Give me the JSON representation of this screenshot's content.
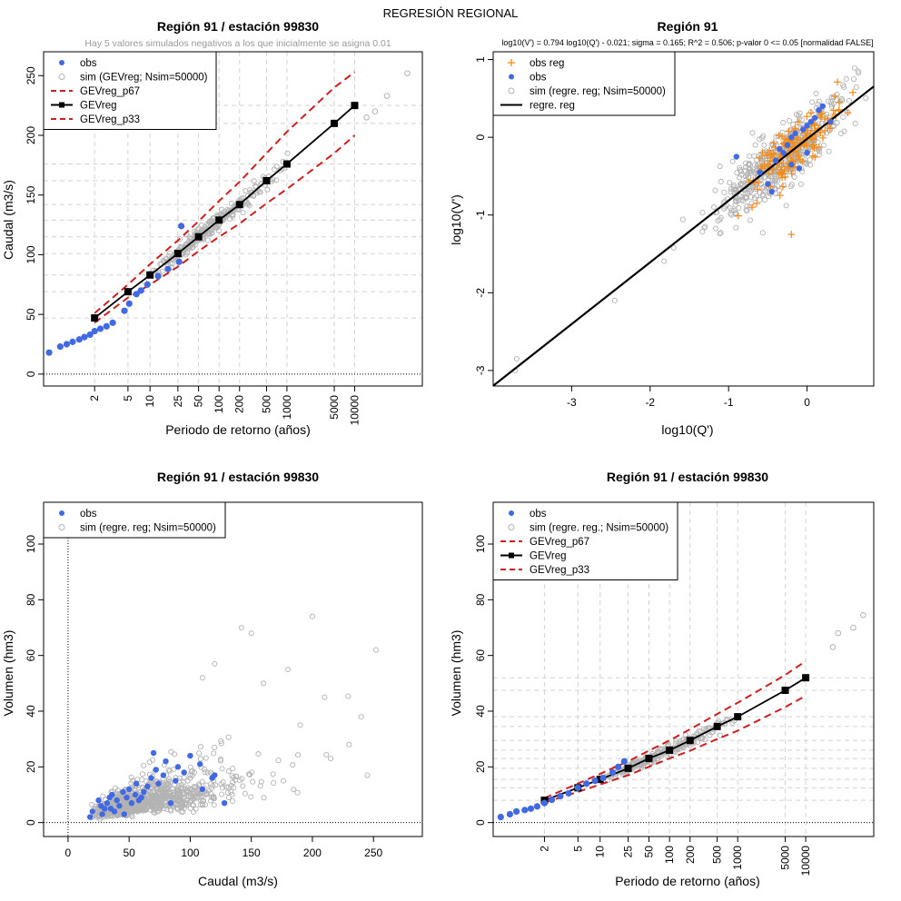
{
  "figure_title": "REGRESIÓN REGIONAL",
  "colors": {
    "obs": "#4169E1",
    "sim": "#B3B3B3",
    "band": "#CC1F1F",
    "fit": "#000000",
    "obs_reg": "#F28C1A",
    "grid": "#D3D3D3"
  },
  "chart_data": [
    {
      "type": "scatter",
      "title": "Región 91 / estación 99830",
      "subtitle": "Hay 5 valores simulados negativos a los que inicialmente se asigna 0.01",
      "xlabel": "Periodo de retorno (años)",
      "ylabel": "Caudal (m3/s)",
      "x_scale": "gumbel_return_period",
      "xlim": [
        1.02,
        100000
      ],
      "ylim": [
        -10,
        270
      ],
      "x_ticks": [
        2,
        5,
        10,
        25,
        50,
        100,
        200,
        500,
        1000,
        5000,
        10000
      ],
      "y_ticks": [
        0,
        50,
        100,
        150,
        200,
        250
      ],
      "legend": [
        "obs",
        "sim (GEVreg; Nsim=50000)",
        "GEVreg_p67",
        "GEVreg",
        "GEVreg_p33"
      ],
      "return_periods": [
        2,
        5,
        10,
        25,
        50,
        100,
        200,
        500,
        1000,
        5000,
        10000
      ],
      "gevreg": [
        47,
        69,
        83,
        101,
        115,
        129,
        142,
        162,
        176,
        210,
        225
      ],
      "gevreg_p67": [
        51,
        75,
        92,
        112,
        128,
        145,
        161,
        185,
        203,
        240,
        253
      ],
      "gevreg_p33": [
        43,
        64,
        75,
        90,
        103,
        115,
        126,
        143,
        155,
        185,
        200
      ],
      "obs": {
        "T": [
          1.04,
          1.12,
          1.2,
          1.3,
          1.45,
          1.6,
          1.8,
          2.0,
          2.3,
          2.7,
          3.2,
          4.5,
          5.2,
          6.5,
          7.5,
          9.2,
          13,
          18,
          26,
          28
        ],
        "y": [
          18,
          23,
          25,
          27,
          29,
          31,
          33,
          36,
          38,
          40,
          43,
          53,
          59,
          67,
          70,
          75,
          82,
          88,
          94,
          124
        ]
      },
      "horizontal_grid_values": [
        47,
        69,
        83,
        101,
        115,
        129,
        142,
        162,
        176,
        210,
        225
      ]
    },
    {
      "type": "scatter",
      "title": "Región 91",
      "subtitle": "log10(V') = 0.794 log10(Q') - 0.021; sigma = 0.165; R^2 = 0.506; p-valor 0 <= 0.05 [normalidad FALSE]",
      "xlabel": "log10(Q')",
      "ylabel": "log10(V')",
      "xlim": [
        -4.0,
        0.85
      ],
      "ylim": [
        -3.2,
        1.1
      ],
      "x_ticks": [
        -3,
        -2,
        -1,
        0
      ],
      "y_ticks": [
        -3,
        -2,
        -1,
        0,
        1
      ],
      "legend": [
        "obs reg",
        "obs",
        "sim (regre. reg; Nsim=50000)",
        "regre. reg"
      ],
      "regression": {
        "slope": 0.794,
        "intercept": -0.021,
        "sigma": 0.165
      },
      "sim_outliers": [
        [
          -3.7,
          -2.85
        ],
        [
          -3.72,
          -3.0
        ],
        [
          -2.45,
          -2.1
        ],
        [
          -1.7,
          -1.42
        ],
        [
          -1.3,
          -1.15
        ],
        [
          0.5,
          0.75
        ],
        [
          0.65,
          0.85
        ]
      ],
      "obs": [
        [
          -0.9,
          -0.25
        ],
        [
          -0.6,
          -0.45
        ],
        [
          -0.5,
          -0.6
        ],
        [
          -0.4,
          -0.3
        ],
        [
          -0.3,
          -0.2
        ],
        [
          -0.25,
          -0.1
        ],
        [
          -0.2,
          0.0
        ],
        [
          -0.15,
          0.05
        ],
        [
          -0.1,
          -0.4
        ],
        [
          -0.05,
          0.1
        ],
        [
          0.0,
          0.15
        ],
        [
          0.05,
          0.2
        ],
        [
          0.1,
          0.25
        ],
        [
          0.15,
          0.35
        ],
        [
          0.2,
          0.4
        ],
        [
          -0.35,
          -0.15
        ],
        [
          -0.45,
          -0.7
        ],
        [
          0.0,
          -0.2
        ],
        [
          0.3,
          0.2
        ],
        [
          -0.2,
          -0.35
        ]
      ],
      "obs_reg_outliers": [
        [
          -0.2,
          -1.25
        ],
        [
          -0.7,
          -0.9
        ]
      ]
    },
    {
      "type": "scatter",
      "title": "Región 91 / estación 99830",
      "xlabel": "Caudal (m3/s)",
      "ylabel": "Volumen (hm3)",
      "xlim": [
        -20,
        290
      ],
      "ylim": [
        -5,
        115
      ],
      "x_ticks": [
        0,
        50,
        100,
        150,
        200,
        250
      ],
      "y_ticks": [
        0,
        20,
        40,
        60,
        80,
        100
      ],
      "legend": [
        "obs",
        "sim (regre. reg; Nsim=50000)"
      ],
      "sim_outliers": [
        [
          252,
          62
        ],
        [
          200,
          74
        ],
        [
          240,
          38
        ],
        [
          180,
          55
        ],
        [
          230,
          28
        ],
        [
          210,
          45
        ],
        [
          160,
          50
        ],
        [
          190,
          35
        ],
        [
          245,
          17
        ],
        [
          150,
          68
        ],
        [
          142,
          70
        ],
        [
          120,
          57
        ],
        [
          110,
          52
        ],
        [
          215,
          23
        ]
      ],
      "obs": [
        [
          18,
          2
        ],
        [
          20,
          4
        ],
        [
          25,
          8
        ],
        [
          27,
          6
        ],
        [
          28,
          3
        ],
        [
          30,
          5
        ],
        [
          32,
          7
        ],
        [
          34,
          9
        ],
        [
          35,
          5
        ],
        [
          36,
          10
        ],
        [
          38,
          4
        ],
        [
          40,
          8
        ],
        [
          42,
          6
        ],
        [
          45,
          11
        ],
        [
          46,
          3
        ],
        [
          48,
          9
        ],
        [
          50,
          12
        ],
        [
          52,
          7
        ],
        [
          55,
          10
        ],
        [
          56,
          14
        ],
        [
          58,
          8
        ],
        [
          60,
          9
        ],
        [
          62,
          11
        ],
        [
          65,
          13
        ],
        [
          68,
          16
        ],
        [
          70,
          25
        ],
        [
          72,
          19
        ],
        [
          74,
          14
        ],
        [
          78,
          17
        ],
        [
          80,
          22
        ],
        [
          84,
          7
        ],
        [
          88,
          15
        ],
        [
          90,
          20
        ],
        [
          95,
          18
        ],
        [
          100,
          24
        ],
        [
          108,
          21
        ],
        [
          110,
          12
        ],
        [
          118,
          16
        ],
        [
          120,
          17
        ],
        [
          128,
          7
        ]
      ]
    },
    {
      "type": "scatter",
      "title": "Región 91 / estación 99830",
      "xlabel": "Periodo de retorno (años)",
      "ylabel": "Volumen (hm3)",
      "x_scale": "gumbel_return_period",
      "xlim": [
        1.02,
        100000
      ],
      "ylim": [
        -5,
        115
      ],
      "x_ticks": [
        2,
        5,
        10,
        25,
        50,
        100,
        200,
        500,
        1000,
        5000,
        10000
      ],
      "y_ticks": [
        0,
        20,
        40,
        60,
        80,
        100
      ],
      "legend": [
        "obs",
        "sim (regre. reg.; Nsim=50000)",
        "GEVreg_p67",
        "GEVreg",
        "GEVreg_p33"
      ],
      "return_periods": [
        2,
        5,
        10,
        25,
        50,
        100,
        200,
        500,
        1000,
        5000,
        10000
      ],
      "gevreg": [
        8,
        12.5,
        15.5,
        19.5,
        23,
        26,
        29.5,
        34.5,
        38,
        47.5,
        52
      ],
      "gevreg_p67": [
        8.8,
        14,
        17.5,
        22,
        25.8,
        29.5,
        33.5,
        39,
        43,
        53,
        58
      ],
      "gevreg_p33": [
        7.2,
        11,
        13.7,
        17,
        20,
        23,
        25.8,
        30,
        33,
        41.5,
        45.5
      ],
      "obs": {
        "T": [
          1.05,
          1.12,
          1.2,
          1.35,
          1.5,
          1.7,
          2.0,
          2.4,
          3.0,
          3.8,
          5.0,
          6.5,
          8.5,
          11,
          15,
          18,
          22
        ],
        "y": [
          2,
          3,
          4,
          4.5,
          5,
          5.8,
          7,
          8.2,
          9.5,
          10.5,
          12.5,
          14,
          15,
          16,
          18,
          20,
          22
        ]
      },
      "sim_outliers": [
        [
          30000,
          68
        ],
        [
          50000,
          70
        ],
        [
          70000,
          74.5
        ],
        [
          25000,
          63
        ]
      ],
      "horizontal_grid_values": [
        8,
        12.5,
        15.5,
        19.5,
        23,
        26,
        29.5,
        34.5,
        38,
        47.5,
        52
      ]
    }
  ]
}
